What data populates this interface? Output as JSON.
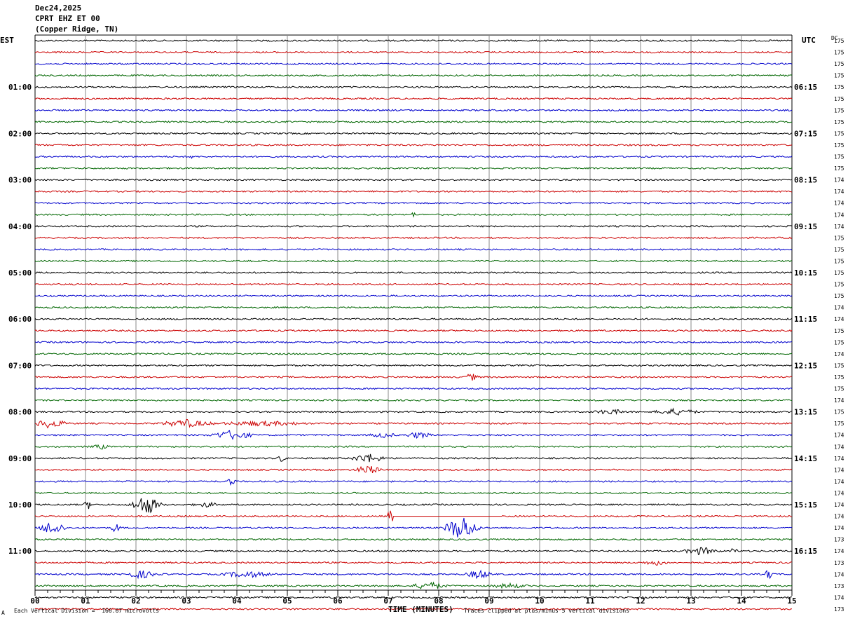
{
  "header": {
    "date": "Dec24,2025",
    "station": "CPRT EHZ ET 00",
    "location": "(Copper Ridge, TN)"
  },
  "corners": {
    "left_zone": "EST",
    "right_zone": "UTC",
    "dc_label": "DC"
  },
  "footer": {
    "scale_note": "Each Vertical Division =  166.67 microvolts",
    "clip_note": "Traces clipped at plus/minus 5 vertical divisions",
    "small_mark": "A"
  },
  "colors": {
    "trace_cycle": [
      "#000000",
      "#cc0000",
      "#0000cc",
      "#006600"
    ],
    "grid": "#888888"
  },
  "chart_data": {
    "type": "line",
    "title": "CPRT EHZ ET 00",
    "xlabel": "TIME (MINUTES)",
    "xlim": [
      0,
      15
    ],
    "x_ticks": [
      "00",
      "01",
      "02",
      "03",
      "04",
      "05",
      "06",
      "07",
      "08",
      "09",
      "10",
      "11",
      "12",
      "13",
      "14",
      "15"
    ],
    "traces_per_hour": 4,
    "minutes_per_trace": 15,
    "left_hour_labels": [
      "01:00",
      "02:00",
      "03:00",
      "04:00",
      "05:00",
      "06:00",
      "07:00",
      "08:00",
      "09:00",
      "10:00",
      "11:00"
    ],
    "right_hour_labels": [
      "06:15",
      "07:15",
      "08:15",
      "09:15",
      "10:15",
      "11:15",
      "12:15",
      "13:15",
      "14:15",
      "15:15",
      "16:15"
    ],
    "dc_offsets": [
      "175",
      "175",
      "175",
      "175",
      "175",
      "175",
      "175",
      "175",
      "175",
      "175",
      "175",
      "175",
      "174",
      "174",
      "174",
      "174",
      "174",
      "175",
      "175",
      "175",
      "175",
      "175",
      "175",
      "174",
      "174",
      "175",
      "175",
      "174",
      "175",
      "175",
      "175",
      "174",
      "175",
      "175",
      "174",
      "174",
      "174",
      "174",
      "174",
      "174",
      "174",
      "174",
      "174",
      "173",
      "174",
      "173",
      "174",
      "173",
      "174",
      "173"
    ],
    "events": [
      {
        "trace": 10,
        "minute": 3.1,
        "amp": 3,
        "dur": 0.05
      },
      {
        "trace": 15,
        "minute": 7.5,
        "amp": 3,
        "dur": 0.05
      },
      {
        "trace": 29,
        "minute": 8.65,
        "amp": 5,
        "dur": 0.15
      },
      {
        "trace": 32,
        "minute": 11.4,
        "amp": 3,
        "dur": 0.4
      },
      {
        "trace": 32,
        "minute": 12.7,
        "amp": 4,
        "dur": 0.5
      },
      {
        "trace": 33,
        "minute": 0.3,
        "amp": 6,
        "dur": 0.4
      },
      {
        "trace": 33,
        "minute": 3.0,
        "amp": 5,
        "dur": 0.6
      },
      {
        "trace": 33,
        "minute": 4.5,
        "amp": 3,
        "dur": 1.0
      },
      {
        "trace": 34,
        "minute": 3.9,
        "amp": 6,
        "dur": 0.5
      },
      {
        "trace": 34,
        "minute": 6.9,
        "amp": 3,
        "dur": 0.3
      },
      {
        "trace": 34,
        "minute": 7.6,
        "amp": 4,
        "dur": 0.3
      },
      {
        "trace": 35,
        "minute": 1.3,
        "amp": 3,
        "dur": 0.2
      },
      {
        "trace": 36,
        "minute": 4.9,
        "amp": 6,
        "dur": 0.1
      },
      {
        "trace": 36,
        "minute": 6.6,
        "amp": 6,
        "dur": 0.4
      },
      {
        "trace": 37,
        "minute": 6.6,
        "amp": 6,
        "dur": 0.3
      },
      {
        "trace": 38,
        "minute": 3.9,
        "amp": 6,
        "dur": 0.1
      },
      {
        "trace": 40,
        "minute": 1.05,
        "amp": 6,
        "dur": 0.1
      },
      {
        "trace": 40,
        "minute": 2.2,
        "amp": 14,
        "dur": 0.35
      },
      {
        "trace": 40,
        "minute": 3.4,
        "amp": 3,
        "dur": 0.3
      },
      {
        "trace": 41,
        "minute": 7.05,
        "amp": 10,
        "dur": 0.1
      },
      {
        "trace": 42,
        "minute": 0.35,
        "amp": 10,
        "dur": 0.3
      },
      {
        "trace": 42,
        "minute": 1.6,
        "amp": 8,
        "dur": 0.1
      },
      {
        "trace": 42,
        "minute": 8.45,
        "amp": 18,
        "dur": 0.4
      },
      {
        "trace": 44,
        "minute": 13.2,
        "amp": 5,
        "dur": 0.4
      },
      {
        "trace": 44,
        "minute": 13.85,
        "amp": 4,
        "dur": 0.1
      },
      {
        "trace": 45,
        "minute": 12.3,
        "amp": 3,
        "dur": 0.3
      },
      {
        "trace": 46,
        "minute": 2.1,
        "amp": 5,
        "dur": 0.4
      },
      {
        "trace": 46,
        "minute": 4.2,
        "amp": 4,
        "dur": 0.6
      },
      {
        "trace": 46,
        "minute": 8.8,
        "amp": 6,
        "dur": 0.3
      },
      {
        "trace": 46,
        "minute": 14.55,
        "amp": 8,
        "dur": 0.1
      },
      {
        "trace": 47,
        "minute": 7.8,
        "amp": 5,
        "dur": 0.4
      },
      {
        "trace": 47,
        "minute": 9.4,
        "amp": 3,
        "dur": 0.4
      }
    ],
    "gaps": [
      {
        "trace": 41,
        "start": 7.1,
        "end": 9.25
      }
    ]
  }
}
